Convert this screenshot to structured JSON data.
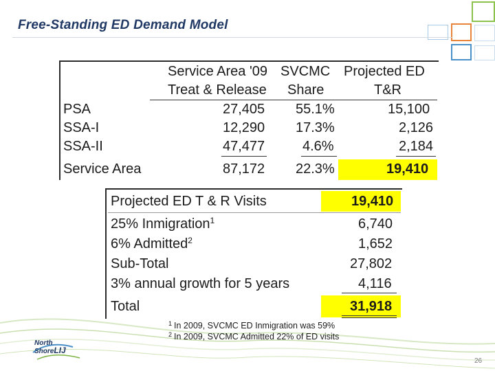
{
  "slide_title": "Free-Standing ED Demand Model",
  "page_number": "26",
  "logo": {
    "line1": "North",
    "line2": "Shore",
    "line3": "LIJ"
  },
  "table1": {
    "header1": {
      "col1": "Service Area '09",
      "col2": "SVCMC",
      "col3": "Projected  ED"
    },
    "header2": {
      "col1": "Treat & Release",
      "col2": "Share",
      "col3": "T&R"
    },
    "rows": [
      {
        "label": "PSA",
        "treat_release": "27,405",
        "share": "55.1%",
        "projected": "15,100"
      },
      {
        "label": "SSA-I",
        "treat_release": "12,290",
        "share": "17.3%",
        "projected": "2,126"
      },
      {
        "label": "SSA-II",
        "treat_release": "47,477",
        "share": "4.6%",
        "projected": "2,184"
      },
      {
        "label": "Service Area",
        "treat_release": "87,172",
        "share": "22.3%",
        "projected": "19,410"
      }
    ],
    "highlight_color": "#ffff00"
  },
  "table2": {
    "rows": [
      {
        "label": "Projected ED T & R Visits",
        "sup": "",
        "value": "19,410"
      },
      {
        "label": "25% Inmigration",
        "sup": "1",
        "value": "6,740"
      },
      {
        "label": "6% Admitted",
        "sup": "2",
        "value": "1,652"
      },
      {
        "label": "Sub-Total",
        "sup": "",
        "value": "27,802"
      },
      {
        "label": "3% annual growth for 5 years",
        "sup": "",
        "value": "4,116"
      },
      {
        "label": "Total",
        "sup": "",
        "value": "31,918"
      }
    ]
  },
  "footnotes": [
    {
      "num": "1",
      "text": "In 2009, SVCMC ED Inmigration was 59%"
    },
    {
      "num": "2",
      "text": "In 2009, SVCMC Admitted 22% of ED visits"
    }
  ],
  "colors": {
    "title": "#1f3864",
    "accent_green": "#7cb342",
    "accent_blue": "#4a90c8",
    "accent_orange": "#e8833a"
  }
}
